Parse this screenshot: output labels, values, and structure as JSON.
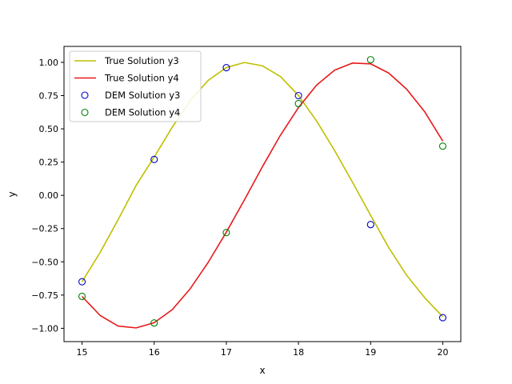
{
  "chart_data": {
    "type": "line",
    "title": "",
    "xlabel": "x",
    "ylabel": "y",
    "xlim": [
      14.75,
      20.25
    ],
    "ylim": [
      -1.1,
      1.12
    ],
    "x_ticks": [
      15,
      16,
      17,
      18,
      19,
      20
    ],
    "x_tick_labels": [
      "15",
      "16",
      "17",
      "18",
      "19",
      "20"
    ],
    "y_ticks": [
      -1.0,
      -0.75,
      -0.5,
      -0.25,
      0.0,
      0.25,
      0.5,
      0.75,
      1.0
    ],
    "y_tick_labels": [
      "−1.00",
      "−0.75",
      "−0.50",
      "−0.25",
      "0.00",
      "0.25",
      "0.50",
      "0.75",
      "1.00"
    ],
    "grid": false,
    "legend_position": "upper-left",
    "lines": [
      {
        "name": "True Solution y3",
        "color": "#bfbf00",
        "x": [
          15.0,
          15.25,
          15.5,
          15.75,
          16.0,
          16.25,
          16.5,
          16.75,
          17.0,
          17.25,
          17.5,
          17.75,
          18.0,
          18.25,
          18.5,
          18.75,
          19.0,
          19.25,
          19.5,
          19.75,
          20.0
        ],
        "y": [
          -0.65,
          -0.43,
          -0.183,
          0.075,
          0.288,
          0.512,
          0.712,
          0.865,
          0.961,
          0.999,
          0.974,
          0.893,
          0.751,
          0.56,
          0.338,
          0.097,
          -0.15,
          -0.392,
          -0.602,
          -0.77,
          -0.913
        ]
      },
      {
        "name": "True Solution y4",
        "color": "#e8191b",
        "x": [
          15.0,
          15.25,
          15.5,
          15.75,
          16.0,
          16.25,
          16.5,
          16.75,
          17.0,
          17.25,
          17.5,
          17.75,
          18.0,
          18.25,
          18.5,
          18.75,
          19.0,
          19.25,
          19.5,
          19.75,
          20.0
        ],
        "y": [
          -0.76,
          -0.903,
          -0.983,
          -0.997,
          -0.958,
          -0.86,
          -0.702,
          -0.503,
          -0.277,
          -0.035,
          0.215,
          0.452,
          0.66,
          0.828,
          0.941,
          0.995,
          0.989,
          0.92,
          0.798,
          0.628,
          0.408
        ]
      }
    ],
    "scatter": [
      {
        "name": "DEM Solution y3",
        "color": "#0000cc",
        "x": [
          15,
          16,
          17,
          18,
          19,
          20
        ],
        "y": [
          -0.65,
          0.27,
          0.96,
          0.75,
          -0.22,
          -0.92
        ]
      },
      {
        "name": "DEM Solution y4",
        "color": "#008000",
        "x": [
          15,
          16,
          17,
          18,
          19,
          20
        ],
        "y": [
          -0.76,
          -0.96,
          -0.28,
          0.69,
          1.02,
          0.37
        ]
      }
    ]
  }
}
